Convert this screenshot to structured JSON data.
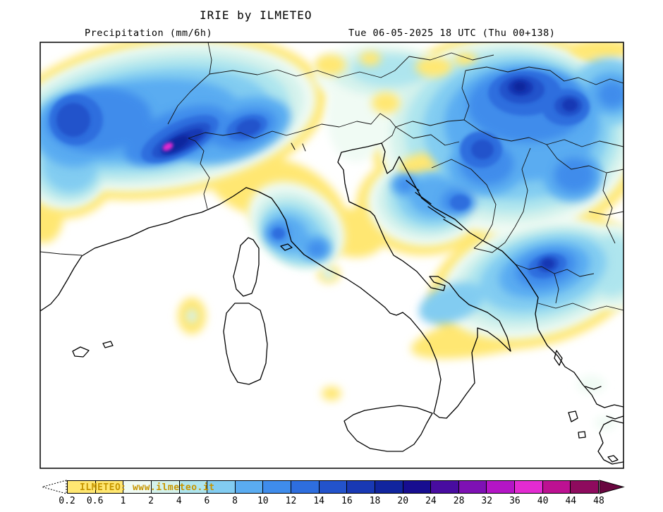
{
  "header": {
    "title": "IRIE by ILMETEO",
    "left_label": "Precipitation (mm/6h)",
    "right_label": "Tue 06-05-2025 18 UTC (Thu 00+138)"
  },
  "watermark": "ILMETEO: www.ilmeteo.it",
  "colorbar": {
    "tick_labels": [
      "0.2",
      "0.6",
      "1",
      "2",
      "4",
      "6",
      "8",
      "10",
      "12",
      "14",
      "16",
      "18",
      "20",
      "24",
      "28",
      "32",
      "36",
      "40",
      "44",
      "48"
    ],
    "segment_colors": [
      "#ffe772",
      "#ffe772",
      "#f0fbf4",
      "#d4f2ec",
      "#aee5ee",
      "#82ccf1",
      "#5aacf1",
      "#3f8ceb",
      "#2e6ede",
      "#2353cb",
      "#1939b4",
      "#11259e",
      "#170d90",
      "#480ca0",
      "#7e11b4",
      "#b415c6",
      "#e32bd2",
      "#bd1192",
      "#8e0b5e"
    ],
    "arrow_right_color": "#690640",
    "peak_marker_color": "#e32bd2",
    "frame_color": "#000000"
  }
}
